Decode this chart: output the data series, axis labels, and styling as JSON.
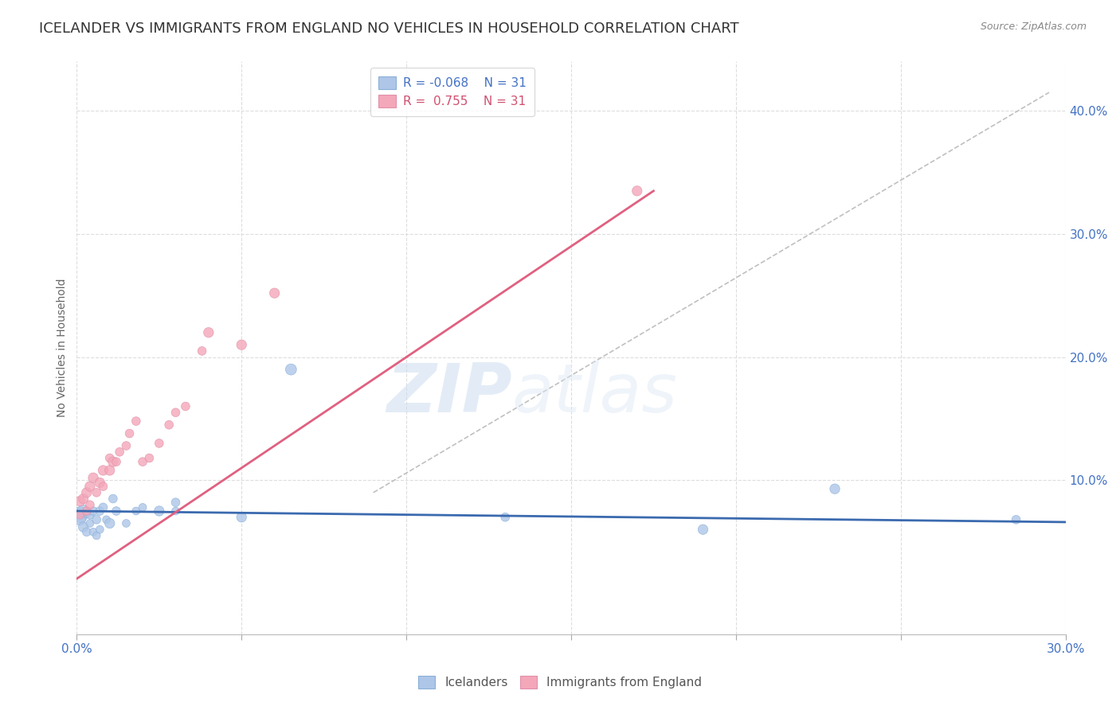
{
  "title": "ICELANDER VS IMMIGRANTS FROM ENGLAND NO VEHICLES IN HOUSEHOLD CORRELATION CHART",
  "source": "Source: ZipAtlas.com",
  "ylabel": "No Vehicles in Household",
  "xlim": [
    0.0,
    0.3
  ],
  "ylim": [
    -0.025,
    0.44
  ],
  "xtick_positions": [
    0.0,
    0.05,
    0.1,
    0.15,
    0.2,
    0.25,
    0.3
  ],
  "xtick_labels": [
    "0.0%",
    "",
    "",
    "",
    "",
    "",
    "30.0%"
  ],
  "ytick_values": [
    0.1,
    0.2,
    0.3,
    0.4
  ],
  "legend_entries": [
    {
      "label_r": "R = -0.068",
      "label_n": "N = 31",
      "color": "#aec6e8"
    },
    {
      "label_r": "R =  0.755",
      "label_n": "N = 31",
      "color": "#f4a7b9"
    }
  ],
  "watermark_zip": "ZIP",
  "watermark_atlas": "atlas",
  "icelanders": {
    "color": "#aec6e8",
    "x": [
      0.001,
      0.001,
      0.002,
      0.002,
      0.003,
      0.003,
      0.004,
      0.004,
      0.005,
      0.005,
      0.006,
      0.006,
      0.007,
      0.007,
      0.008,
      0.009,
      0.01,
      0.011,
      0.012,
      0.015,
      0.018,
      0.02,
      0.025,
      0.03,
      0.03,
      0.05,
      0.065,
      0.13,
      0.19,
      0.23,
      0.285
    ],
    "y": [
      0.072,
      0.068,
      0.075,
      0.062,
      0.073,
      0.058,
      0.072,
      0.065,
      0.075,
      0.058,
      0.068,
      0.055,
      0.075,
      0.06,
      0.078,
      0.068,
      0.065,
      0.085,
      0.075,
      0.065,
      0.075,
      0.078,
      0.075,
      0.075,
      0.082,
      0.07,
      0.19,
      0.07,
      0.06,
      0.093,
      0.068
    ],
    "size": [
      200,
      100,
      120,
      80,
      60,
      60,
      60,
      50,
      60,
      50,
      60,
      50,
      60,
      50,
      60,
      50,
      80,
      60,
      60,
      50,
      50,
      50,
      80,
      50,
      60,
      80,
      100,
      60,
      80,
      80,
      60
    ]
  },
  "immigrants": {
    "color": "#f4a7b9",
    "x": [
      0.001,
      0.001,
      0.002,
      0.003,
      0.003,
      0.004,
      0.004,
      0.005,
      0.006,
      0.007,
      0.008,
      0.008,
      0.01,
      0.01,
      0.011,
      0.012,
      0.013,
      0.015,
      0.016,
      0.018,
      0.02,
      0.022,
      0.025,
      0.028,
      0.03,
      0.033,
      0.038,
      0.04,
      0.05,
      0.06,
      0.17
    ],
    "y": [
      0.083,
      0.072,
      0.085,
      0.09,
      0.075,
      0.095,
      0.08,
      0.102,
      0.09,
      0.098,
      0.108,
      0.095,
      0.108,
      0.118,
      0.115,
      0.115,
      0.123,
      0.128,
      0.138,
      0.148,
      0.115,
      0.118,
      0.13,
      0.145,
      0.155,
      0.16,
      0.205,
      0.22,
      0.21,
      0.252,
      0.335
    ],
    "size": [
      80,
      60,
      80,
      80,
      60,
      80,
      60,
      80,
      60,
      80,
      80,
      60,
      80,
      60,
      80,
      60,
      60,
      60,
      60,
      60,
      60,
      60,
      60,
      60,
      60,
      60,
      60,
      80,
      80,
      80,
      80
    ]
  },
  "blue_line": {
    "x0": 0.0,
    "x1": 0.3,
    "y0": 0.075,
    "y1": 0.066
  },
  "pink_line": {
    "x0": 0.0,
    "x1": 0.175,
    "y0": 0.02,
    "y1": 0.335
  },
  "dashed_line": {
    "x0": 0.09,
    "x1": 0.295,
    "y0": 0.09,
    "y1": 0.415
  },
  "background_color": "#ffffff",
  "grid_color": "#dddddd",
  "title_color": "#333333",
  "axis_label_color": "#4472c4",
  "title_fontsize": 13,
  "ylabel_fontsize": 10,
  "tick_fontsize": 11
}
